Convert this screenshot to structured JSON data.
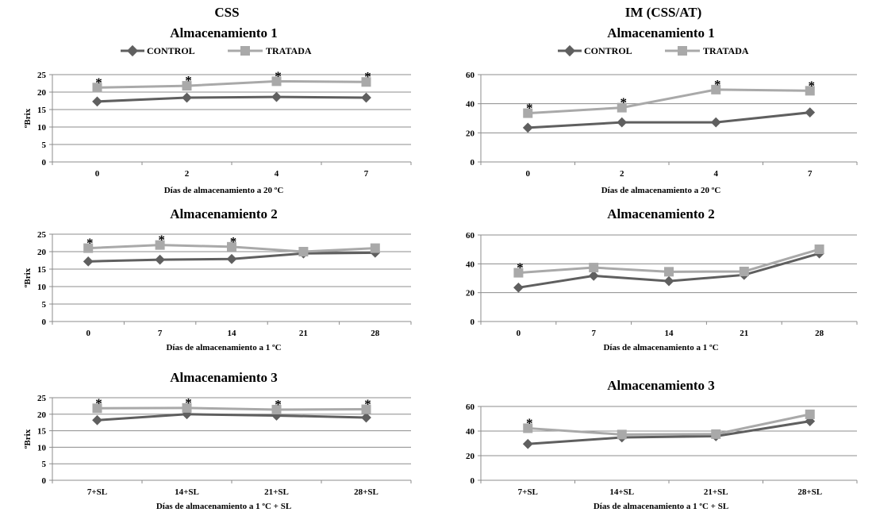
{
  "colors": {
    "control": "#5f5f5f",
    "tratada": "#a9a9a9",
    "grid": "#8c8c8c",
    "axis": "#8c8c8c"
  },
  "column_headers": [
    "CSS",
    "IM (CSS/AT)"
  ],
  "legend": {
    "control": "CONTROL",
    "tratada": "TRATADA"
  },
  "chart_data": [
    {
      "type": "line",
      "title": "Almacenamiento 1",
      "xlabel": "Días de almacenamiento a 20 ºC",
      "ylabel": "ºBrix",
      "ylim": [
        0,
        25
      ],
      "yticks": [
        0,
        5,
        10,
        15,
        20,
        25
      ],
      "grid": true,
      "legend": "top",
      "categories": [
        "0",
        "2",
        "4",
        "7"
      ],
      "series": [
        {
          "name": "CONTROL",
          "values": [
            17.3,
            18.4,
            18.6,
            18.4
          ],
          "marker": "diamond"
        },
        {
          "name": "TRATADA",
          "values": [
            21.3,
            21.8,
            23.1,
            22.9
          ],
          "marker": "square"
        }
      ],
      "significance": [
        true,
        true,
        true,
        true
      ]
    },
    {
      "type": "line",
      "title": "Almacenamiento 2",
      "xlabel": "Días de almacenamiento a 1 ºC",
      "ylabel": "ºBrix",
      "ylim": [
        0,
        25
      ],
      "yticks": [
        0,
        5,
        10,
        15,
        20,
        25
      ],
      "grid": true,
      "categories": [
        "0",
        "7",
        "14",
        "21",
        "28"
      ],
      "series": [
        {
          "name": "CONTROL",
          "values": [
            17.2,
            17.7,
            17.9,
            19.5,
            19.7
          ],
          "marker": "diamond"
        },
        {
          "name": "TRATADA",
          "values": [
            21.0,
            21.9,
            21.4,
            20.0,
            21.0
          ],
          "marker": "square"
        }
      ],
      "significance": [
        true,
        true,
        true,
        false,
        false
      ]
    },
    {
      "type": "line",
      "title": "Almacenamiento 3",
      "xlabel": "Días de almacenamiento a 1 ºC + SL",
      "ylabel": "ºBrix",
      "ylim": [
        0,
        25
      ],
      "yticks": [
        0,
        5,
        10,
        15,
        20,
        25
      ],
      "grid": true,
      "categories": [
        "7+SL",
        "14+SL",
        "21+SL",
        "28+SL"
      ],
      "series": [
        {
          "name": "CONTROL",
          "values": [
            18.2,
            20.0,
            19.6,
            19.0
          ],
          "marker": "diamond"
        },
        {
          "name": "TRATADA",
          "values": [
            21.8,
            21.9,
            21.4,
            21.5
          ],
          "marker": "square"
        }
      ],
      "significance": [
        true,
        true,
        true,
        true
      ]
    },
    {
      "type": "line",
      "title": "Almacenamiento 1",
      "xlabel": "Días de almacenamiento a 20 ºC",
      "ylabel": "",
      "ylim": [
        0,
        60
      ],
      "yticks": [
        0,
        20,
        40,
        60
      ],
      "grid": true,
      "legend": "top",
      "categories": [
        "0",
        "2",
        "4",
        "7"
      ],
      "series": [
        {
          "name": "CONTROL",
          "values": [
            23.5,
            27.2,
            27.2,
            34.0
          ],
          "marker": "diamond"
        },
        {
          "name": "TRATADA",
          "values": [
            33.5,
            37.3,
            49.7,
            48.9
          ],
          "marker": "square"
        }
      ],
      "significance": [
        true,
        true,
        true,
        true
      ]
    },
    {
      "type": "line",
      "title": "Almacenamiento 2",
      "xlabel": "Días de almacenamiento a 1 ºC",
      "ylabel": "",
      "ylim": [
        0,
        60
      ],
      "yticks": [
        0,
        20,
        40,
        60
      ],
      "grid": true,
      "categories": [
        "0",
        "7",
        "14",
        "21",
        "28"
      ],
      "series": [
        {
          "name": "CONTROL",
          "values": [
            23.5,
            31.7,
            28.0,
            32.3,
            47.2
          ],
          "marker": "diamond"
        },
        {
          "name": "TRATADA",
          "values": [
            33.8,
            37.4,
            34.5,
            34.7,
            50.1
          ],
          "marker": "square"
        }
      ],
      "significance": [
        true,
        false,
        false,
        false,
        false
      ]
    },
    {
      "type": "line",
      "title": "Almacenamiento 3",
      "xlabel": "Días de almacenamiento a 1 ºC + SL",
      "ylabel": "",
      "ylim": [
        0,
        60
      ],
      "yticks": [
        0,
        20,
        40,
        60
      ],
      "grid": true,
      "categories": [
        "7+SL",
        "14+SL",
        "21+SL",
        "28+SL"
      ],
      "series": [
        {
          "name": "CONTROL",
          "values": [
            29.5,
            34.8,
            35.8,
            48.0
          ],
          "marker": "diamond"
        },
        {
          "name": "TRATADA",
          "values": [
            42.3,
            37.2,
            37.5,
            53.6
          ],
          "marker": "square"
        }
      ],
      "significance": [
        true,
        false,
        false,
        false
      ]
    }
  ]
}
